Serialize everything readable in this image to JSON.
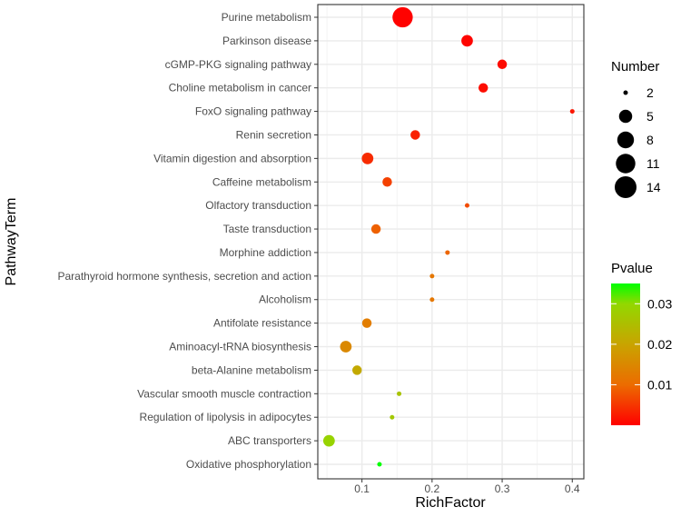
{
  "chart_data": {
    "type": "scatter",
    "xlabel": "RichFactor",
    "ylabel": "PathwayTerm",
    "xlim": [
      0.037,
      0.4165
    ],
    "xticks": [
      0.1,
      0.2,
      0.3,
      0.4
    ],
    "xtick_labels": [
      "0.1",
      "0.2",
      "0.3",
      "0.4"
    ],
    "grid": true,
    "points": [
      {
        "term": "Purine metabolism",
        "rich_factor": 0.158,
        "number": 12,
        "pvalue": 0.0002
      },
      {
        "term": "Parkinson disease",
        "rich_factor": 0.25,
        "number": 4,
        "pvalue": 0.0005
      },
      {
        "term": "cGMP-PKG signaling pathway",
        "rich_factor": 0.3,
        "number": 3,
        "pvalue": 0.001
      },
      {
        "term": "Choline metabolism in cancer",
        "rich_factor": 0.273,
        "number": 3,
        "pvalue": 0.0012
      },
      {
        "term": "FoxO signaling pathway",
        "rich_factor": 0.4,
        "number": 2,
        "pvalue": 0.002
      },
      {
        "term": "Renin secretion",
        "rich_factor": 0.176,
        "number": 3,
        "pvalue": 0.003
      },
      {
        "term": "Vitamin digestion and absorption",
        "rich_factor": 0.108,
        "number": 4,
        "pvalue": 0.004
      },
      {
        "term": "Caffeine metabolism",
        "rich_factor": 0.136,
        "number": 3,
        "pvalue": 0.006
      },
      {
        "term": "Olfactory transduction",
        "rich_factor": 0.25,
        "number": 2,
        "pvalue": 0.007
      },
      {
        "term": "Taste transduction",
        "rich_factor": 0.12,
        "number": 3,
        "pvalue": 0.009
      },
      {
        "term": "Morphine addiction",
        "rich_factor": 0.222,
        "number": 2,
        "pvalue": 0.0095
      },
      {
        "term": "Parathyroid hormone synthesis, secretion and action",
        "rich_factor": 0.2,
        "number": 2,
        "pvalue": 0.012
      },
      {
        "term": "Alcoholism",
        "rich_factor": 0.2,
        "number": 2,
        "pvalue": 0.012
      },
      {
        "term": "Antifolate resistance",
        "rich_factor": 0.107,
        "number": 3,
        "pvalue": 0.013
      },
      {
        "term": "Aminoacyl-tRNA biosynthesis",
        "rich_factor": 0.077,
        "number": 4,
        "pvalue": 0.015
      },
      {
        "term": "beta-Alanine metabolism",
        "rich_factor": 0.093,
        "number": 3,
        "pvalue": 0.021
      },
      {
        "term": "Vascular smooth muscle contraction",
        "rich_factor": 0.153,
        "number": 2,
        "pvalue": 0.026
      },
      {
        "term": "Regulation of lipolysis in adipocytes",
        "rich_factor": 0.143,
        "number": 2,
        "pvalue": 0.027
      },
      {
        "term": "ABC transporters",
        "rich_factor": 0.053,
        "number": 4,
        "pvalue": 0.029
      },
      {
        "term": "Oxidative phosphorylation",
        "rich_factor": 0.125,
        "number": 2,
        "pvalue": 0.035
      }
    ],
    "size_legend": {
      "title": "Number",
      "values": [
        2,
        5,
        8,
        11,
        14
      ],
      "labels": [
        "2",
        "5",
        "8",
        "11",
        "14"
      ]
    },
    "color_legend": {
      "title": "Pvalue",
      "range": [
        0,
        0.035
      ],
      "ticks": [
        0.01,
        0.02,
        0.03
      ],
      "labels": [
        "0.01",
        "0.02",
        "0.03"
      ],
      "low_color": "#FF0000",
      "high_color": "#00FF00"
    },
    "legend_placement": "right"
  }
}
